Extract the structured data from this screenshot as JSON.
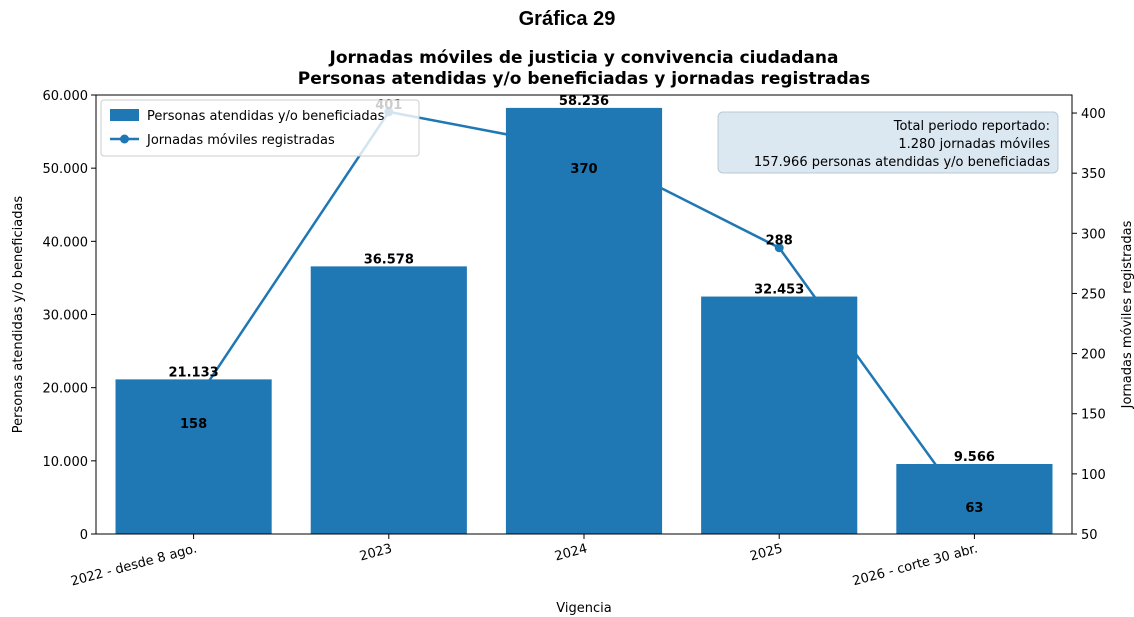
{
  "figure_label": "Gráfica 29",
  "chart_data": {
    "type": "bar",
    "title_line1": "Jornadas móviles de justicia y convivencia ciudadana",
    "title_line2": "Personas atendidas y/o beneficiadas y jornadas registradas",
    "categories": [
      "2022 - desde 8 ago.",
      "2023",
      "2024",
      "2025",
      "2026 - corte 30 abr."
    ],
    "xlabel": "Vigencia",
    "ylabel": "Personas atendidas y/o beneficiadas",
    "y2label": "Jornadas móviles registradas",
    "ylim": [
      0,
      60000
    ],
    "y2lim": [
      50,
      415
    ],
    "yticks": [
      {
        "value": 0,
        "label": "0"
      },
      {
        "value": 10000,
        "label": "10.000"
      },
      {
        "value": 20000,
        "label": "20.000"
      },
      {
        "value": 30000,
        "label": "30.000"
      },
      {
        "value": 40000,
        "label": "40.000"
      },
      {
        "value": 50000,
        "label": "50.000"
      },
      {
        "value": 60000,
        "label": "60.000"
      }
    ],
    "y2ticks": [
      {
        "value": 50,
        "label": "50"
      },
      {
        "value": 100,
        "label": "100"
      },
      {
        "value": 150,
        "label": "150"
      },
      {
        "value": 200,
        "label": "200"
      },
      {
        "value": 250,
        "label": "250"
      },
      {
        "value": 300,
        "label": "300"
      },
      {
        "value": 350,
        "label": "350"
      },
      {
        "value": 400,
        "label": "400"
      }
    ],
    "series": [
      {
        "name": "Personas atendidas y/o beneficiadas",
        "type": "bar",
        "color": "#1f77b4",
        "values": [
          21133,
          36578,
          58236,
          32453,
          9566
        ],
        "labels": [
          "21.133",
          "36.578",
          "58.236",
          "32.453",
          "9.566"
        ]
      },
      {
        "name": "Jornadas móviles registradas",
        "type": "line",
        "color": "#1f77b4",
        "values": [
          158,
          401,
          370,
          288,
          63
        ],
        "labels": [
          "158",
          "401",
          "370",
          "288",
          "63"
        ]
      }
    ],
    "legend_position": "top-left",
    "annotation_box": {
      "position": "top-right",
      "lines": [
        "Total periodo reportado:",
        "1.280 jornadas móviles",
        "157.966 personas atendidas y/o beneficiadas"
      ]
    },
    "grid": false
  }
}
